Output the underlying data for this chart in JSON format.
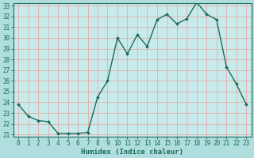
{
  "x": [
    0,
    1,
    2,
    3,
    4,
    5,
    6,
    7,
    8,
    9,
    10,
    11,
    12,
    13,
    14,
    15,
    16,
    17,
    18,
    19,
    20,
    21,
    22,
    23
  ],
  "y": [
    23.8,
    22.7,
    22.3,
    22.2,
    21.1,
    21.1,
    21.1,
    21.2,
    24.5,
    26.0,
    30.0,
    28.5,
    30.3,
    29.2,
    31.7,
    32.2,
    31.3,
    31.8,
    33.3,
    32.2,
    31.7,
    27.3,
    25.7,
    23.8
  ],
  "line_color": "#1a6b5a",
  "marker": "D",
  "marker_size": 2.0,
  "bg_color": "#b0dede",
  "plot_bg_color": "#c8eaea",
  "grid_color": "#e8a0a0",
  "xlabel": "Humidex (Indice chaleur)",
  "xlabel_fontsize": 6.5,
  "tick_fontsize": 5.5,
  "ylim": [
    21,
    33
  ],
  "yticks": [
    21,
    22,
    23,
    24,
    25,
    26,
    27,
    28,
    29,
    30,
    31,
    32,
    33
  ],
  "xticks": [
    0,
    1,
    2,
    3,
    4,
    5,
    6,
    7,
    8,
    9,
    10,
    11,
    12,
    13,
    14,
    15,
    16,
    17,
    18,
    19,
    20,
    21,
    22,
    23
  ],
  "spine_color": "#1a6b5a",
  "tick_color": "#1a6b5a",
  "linewidth": 1.0
}
